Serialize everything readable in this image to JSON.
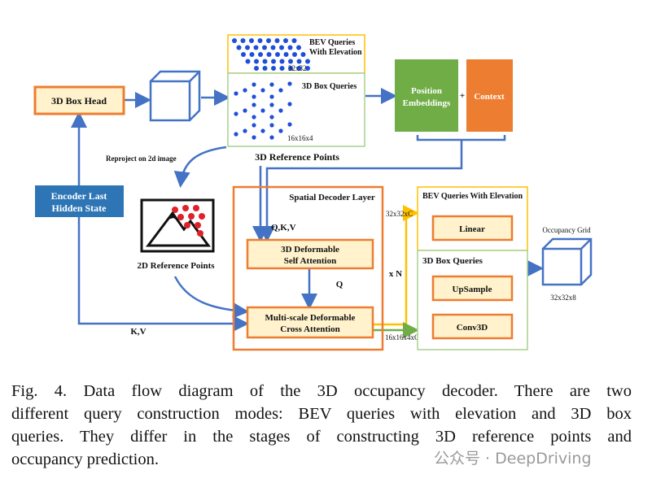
{
  "diagram": {
    "box_head": "3D Box Head",
    "encoder": [
      "Encoder Last",
      "Hidden State"
    ],
    "bev_queries": [
      "BEV Queries",
      "With Elevation"
    ],
    "bev_size": "32x32",
    "box_queries": "3D Box Queries",
    "box_size": "16x16x4",
    "ref_points_3d": "3D Reference Points",
    "reproject": "Reproject on 2d image",
    "ref_points_2d": "2D Reference Points",
    "pos_emb": [
      "Position",
      "Embeddings"
    ],
    "plus": "+",
    "context": "Context",
    "decoder_layer": "Spatial Decoder Layer",
    "qkv": "Q,K,V",
    "self_attn": [
      "3D Deformable",
      "Self Attention"
    ],
    "q": "Q",
    "cross_attn": [
      "Multi-scale Deformable",
      "Cross Attention"
    ],
    "kv": "K,V",
    "xn": "x N",
    "bev_out_size": "32x32xC",
    "box_out_size": "16x16x4xC",
    "bev_head_title": "BEV Queries With Elevation",
    "linear": "Linear",
    "box_head_title": "3D Box Queries",
    "upsample": "UpSample",
    "conv3d": "Conv3D",
    "occ_grid": "Occupancy Grid",
    "occ_size": "32x32x8",
    "colors": {
      "blue": "#4472c4",
      "orange": "#ed7d31",
      "yellow": "#ffc000",
      "green": "#70ad47",
      "fill": "#fff2cc",
      "encoder": "#2e75b6",
      "red": "#e0202a"
    }
  },
  "caption": {
    "lines": [
      "Fig. 4.    Data flow diagram of the 3D occupancy decoder. There are two",
      "different query construction modes: BEV queries with elevation and 3D box",
      "queries. They differ in the stages of constructing 3D reference points and",
      "occupancy prediction."
    ]
  },
  "watermark": "公众号 · DeepDriving"
}
